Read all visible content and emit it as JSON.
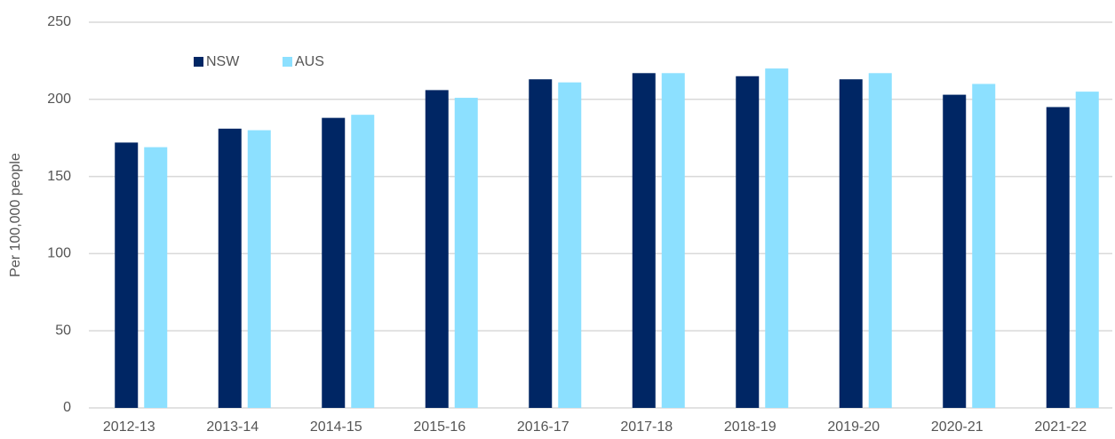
{
  "chart_data": {
    "type": "bar",
    "ylabel": "Per 100,000 people",
    "categories": [
      "2012-13",
      "2013-14",
      "2014-15",
      "2015-16",
      "2016-17",
      "2017-18",
      "2018-19",
      "2019-20",
      "2020-21",
      "2021-22"
    ],
    "series": [
      {
        "name": "NSW",
        "color": "#002664",
        "values": [
          172,
          181,
          188,
          206,
          213,
          217,
          215,
          213,
          203,
          195
        ]
      },
      {
        "name": "AUS",
        "color": "#8ce0ff",
        "values": [
          169,
          180,
          190,
          201,
          211,
          217,
          220,
          217,
          210,
          205
        ]
      }
    ],
    "ylim": [
      0,
      250
    ],
    "yticks": [
      0,
      50,
      100,
      150,
      200,
      250
    ],
    "grid": true,
    "legend": "top-left"
  }
}
